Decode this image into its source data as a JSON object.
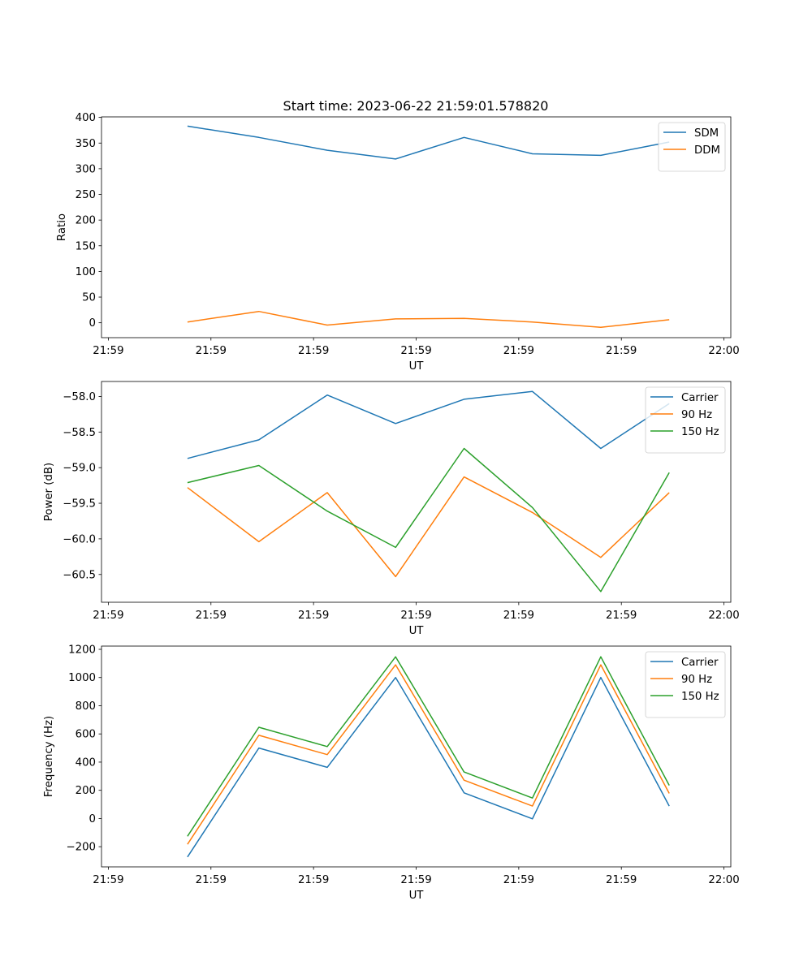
{
  "title": "Start time: 2023-06-22 21:59:01.578820",
  "chart_data": [
    {
      "type": "line",
      "xlabel": "UT",
      "ylabel": "Ratio",
      "xticks": [
        "21:59",
        "21:59",
        "21:59",
        "21:59",
        "21:59",
        "21:59",
        "22:00"
      ],
      "x": [
        1.57882,
        2.1,
        2.6,
        3.1,
        3.6,
        4.1,
        4.6,
        5.1
      ],
      "xlim": [
        0.95,
        5.55
      ],
      "xtick_positions": [
        1.0,
        1.75,
        2.5,
        3.25,
        4.0,
        4.75,
        5.5
      ],
      "ylim": [
        -29,
        401
      ],
      "yticks": [
        0,
        50,
        100,
        150,
        200,
        250,
        300,
        350,
        400
      ],
      "legend": "top-right",
      "series": [
        {
          "name": "SDM",
          "color": "#1f77b4",
          "values": [
            383,
            361,
            336,
            319,
            361,
            329,
            326,
            352
          ]
        },
        {
          "name": "DDM",
          "color": "#ff7f0e",
          "values": [
            1.5,
            22,
            -4.5,
            7.5,
            8.5,
            1.5,
            -9,
            6
          ]
        }
      ]
    },
    {
      "type": "line",
      "xlabel": "UT",
      "ylabel": "Power (dB)",
      "xticks": [
        "21:59",
        "21:59",
        "21:59",
        "21:59",
        "21:59",
        "21:59",
        "22:00"
      ],
      "x": [
        1.57882,
        2.1,
        2.6,
        3.1,
        3.6,
        4.1,
        4.6,
        5.1
      ],
      "xlim": [
        0.95,
        5.55
      ],
      "xtick_positions": [
        1.0,
        1.75,
        2.5,
        3.25,
        4.0,
        4.75,
        5.5
      ],
      "ylim": [
        -60.89,
        -57.79
      ],
      "yticks": [
        -58.0,
        -58.5,
        -59.0,
        -59.5,
        -60.0,
        -60.5
      ],
      "ytick_labels": [
        "−58.0",
        "−58.5",
        "−59.0",
        "−59.5",
        "−60.0",
        "−60.5"
      ],
      "legend": "top-right",
      "series": [
        {
          "name": "Carrier",
          "color": "#1f77b4",
          "values": [
            -58.87,
            -58.61,
            -57.98,
            -58.38,
            -58.04,
            -57.93,
            -58.73,
            -58.1
          ]
        },
        {
          "name": "90 Hz",
          "color": "#ff7f0e",
          "values": [
            -59.28,
            -60.04,
            -59.35,
            -60.53,
            -59.13,
            -59.63,
            -60.26,
            -59.35
          ]
        },
        {
          "name": "150 Hz",
          "color": "#2ca02c",
          "values": [
            -59.21,
            -58.97,
            -59.61,
            -60.12,
            -58.73,
            -59.56,
            -60.74,
            -59.07
          ]
        }
      ]
    },
    {
      "type": "line",
      "xlabel": "UT",
      "ylabel": "Frequency (Hz)",
      "xticks": [
        "21:59",
        "21:59",
        "21:59",
        "21:59",
        "21:59",
        "21:59",
        "22:00"
      ],
      "x": [
        1.57882,
        2.1,
        2.6,
        3.1,
        3.6,
        4.1,
        4.6,
        5.1
      ],
      "xlim": [
        0.95,
        5.55
      ],
      "xtick_positions": [
        1.0,
        1.75,
        2.5,
        3.25,
        4.0,
        4.75,
        5.5
      ],
      "ylim": [
        -343,
        1223
      ],
      "yticks": [
        -200,
        0,
        200,
        400,
        600,
        800,
        1000,
        1200
      ],
      "ytick_labels": [
        "−200",
        "0",
        "200",
        "400",
        "600",
        "800",
        "1000",
        "1200"
      ],
      "legend": "top-right",
      "series": [
        {
          "name": "Carrier",
          "color": "#1f77b4",
          "values": [
            -273,
            500,
            363,
            1000,
            182,
            -2,
            1000,
            88
          ]
        },
        {
          "name": "90 Hz",
          "color": "#ff7f0e",
          "values": [
            -183,
            590,
            453,
            1090,
            272,
            88,
            1090,
            178
          ]
        },
        {
          "name": "150 Hz",
          "color": "#2ca02c",
          "values": [
            -126,
            647,
            510,
            1147,
            330,
            145,
            1147,
            235
          ]
        }
      ]
    }
  ]
}
